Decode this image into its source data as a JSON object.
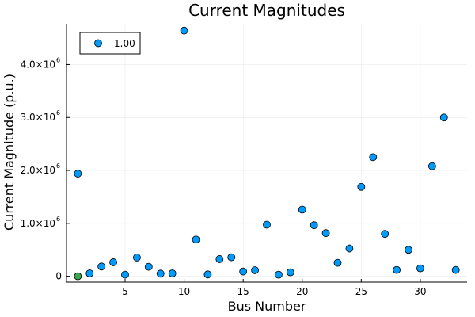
{
  "chart_data": {
    "type": "scatter",
    "title": "Current Magnitudes",
    "xlabel": "Bus Number",
    "ylabel": "Current Magnitude (p.u.)",
    "xlim": [
      0.04,
      33.96
    ],
    "ylim": [
      -110000,
      4770000
    ],
    "x_ticks": [
      5,
      10,
      15,
      20,
      25,
      30
    ],
    "y_ticks": [
      {
        "value": 0,
        "label": "0"
      },
      {
        "value": 1000000,
        "mantissa": "1.0×10",
        "exp": "6"
      },
      {
        "value": 2000000,
        "mantissa": "2.0×10",
        "exp": "6"
      },
      {
        "value": 3000000,
        "mantissa": "3.0×10",
        "exp": "6"
      },
      {
        "value": 4000000,
        "mantissa": "4.0×10",
        "exp": "6"
      }
    ],
    "grid": true,
    "legend": {
      "position": "top-left",
      "label": "1.00"
    },
    "series": [
      {
        "name": "1.00",
        "color": "#009AFA",
        "x": [
          1,
          2,
          3,
          4,
          5,
          6,
          7,
          8,
          9,
          10,
          11,
          12,
          13,
          14,
          15,
          16,
          17,
          18,
          19,
          20,
          21,
          22,
          23,
          24,
          25,
          26,
          27,
          28,
          29,
          30,
          31,
          32,
          33
        ],
        "y": [
          1940000,
          55000,
          185000,
          265000,
          30000,
          355000,
          180000,
          50000,
          55000,
          4640000,
          695000,
          35000,
          325000,
          360000,
          90000,
          115000,
          975000,
          30000,
          75000,
          1260000,
          965000,
          815000,
          255000,
          525000,
          1690000,
          2250000,
          800000,
          120000,
          500000,
          150000,
          2080000,
          3000000,
          120000
        ]
      }
    ],
    "highlight": {
      "x": 1,
      "y": 0,
      "color": "#3DA44D"
    }
  }
}
